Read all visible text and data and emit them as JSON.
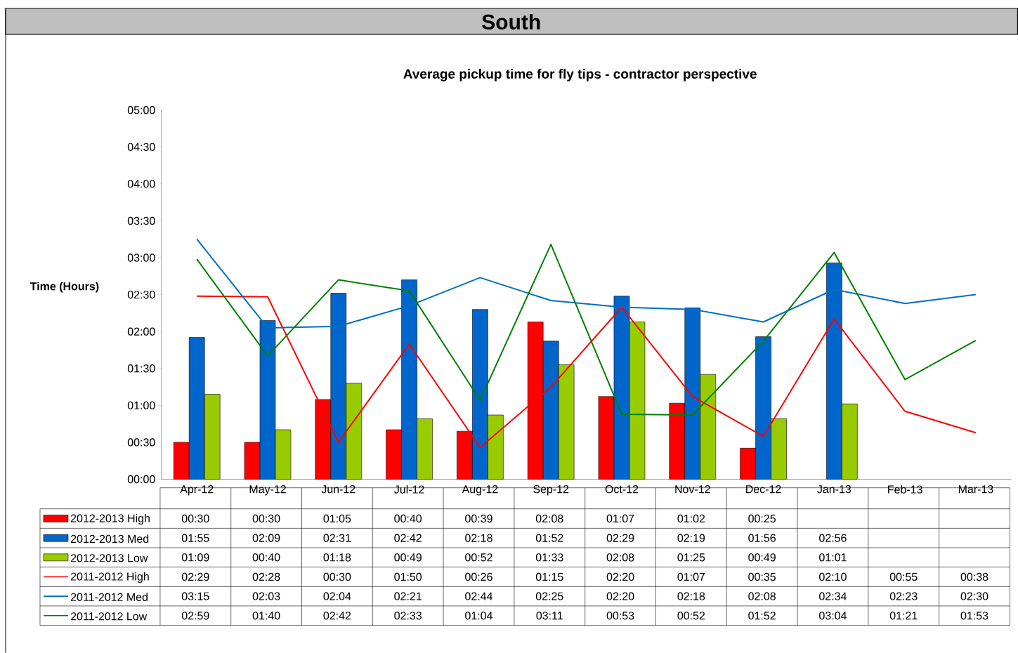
{
  "chart_data": {
    "type": "bar",
    "title": "South",
    "subtitle": "Average pickup time for fly tips - contractor perspective",
    "ylabel": "Time (Hours)",
    "categories": [
      "Apr-12",
      "May-12",
      "Jun-12",
      "Jul-12",
      "Aug-12",
      "Sep-12",
      "Oct-12",
      "Nov-12",
      "Dec-12",
      "Jan-13",
      "Feb-13",
      "Mar-13"
    ],
    "ylim": [
      0,
      5
    ],
    "yticks": [
      {
        "value": 0,
        "label": "00:00"
      },
      {
        "value": 0.5,
        "label": "00:30"
      },
      {
        "value": 1,
        "label": "01:00"
      },
      {
        "value": 1.5,
        "label": "01:30"
      },
      {
        "value": 2,
        "label": "02:00"
      },
      {
        "value": 2.5,
        "label": "02:30"
      },
      {
        "value": 3,
        "label": "03:00"
      },
      {
        "value": 3.5,
        "label": "03:30"
      },
      {
        "value": 4,
        "label": "04:00"
      },
      {
        "value": 4.5,
        "label": "04:30"
      },
      {
        "value": 5,
        "label": "05:00"
      }
    ],
    "legend": "bottom",
    "marker": "none",
    "line_style": "solid",
    "series": [
      {
        "name": "2012-2013 High",
        "type": "bar",
        "color": "#ff0000",
        "values": [
          0.5,
          0.5,
          1.08,
          0.67,
          0.65,
          2.13,
          1.12,
          1.03,
          0.42,
          null,
          null,
          null
        ],
        "value_labels": [
          "00:30",
          "00:30",
          "01:05",
          "00:40",
          "00:39",
          "02:08",
          "01:07",
          "01:02",
          "00:25",
          null,
          null,
          null
        ]
      },
      {
        "name": "2012-2013 Med",
        "type": "bar",
        "color": "#0066cc",
        "values": [
          1.92,
          2.15,
          2.52,
          2.7,
          2.3,
          1.87,
          2.48,
          2.32,
          1.93,
          2.93,
          null,
          null
        ],
        "value_labels": [
          "01:55",
          "02:09",
          "02:31",
          "02:42",
          "02:18",
          "01:52",
          "02:29",
          "02:19",
          "01:56",
          "02:56",
          null,
          null
        ]
      },
      {
        "name": "2012-2013 Low",
        "type": "bar",
        "color": "#99cc00",
        "values": [
          1.15,
          0.67,
          1.3,
          0.82,
          0.87,
          1.55,
          2.13,
          1.42,
          0.82,
          1.02,
          null,
          null
        ],
        "value_labels": [
          "01:09",
          "00:40",
          "01:18",
          "00:49",
          "00:52",
          "01:33",
          "02:08",
          "01:25",
          "00:49",
          "01:01",
          null,
          null
        ]
      },
      {
        "name": "2011-2012 High",
        "type": "line",
        "color": "#ff0000",
        "values": [
          2.48,
          2.47,
          0.5,
          1.83,
          0.43,
          1.25,
          2.33,
          1.12,
          0.58,
          2.17,
          0.92,
          0.63
        ],
        "value_labels": [
          "02:29",
          "02:28",
          "00:30",
          "01:50",
          "00:26",
          "01:15",
          "02:20",
          "01:07",
          "00:35",
          "02:10",
          "00:55",
          "00:38"
        ]
      },
      {
        "name": "2011-2012 Med",
        "type": "line",
        "color": "#0070c0",
        "values": [
          3.25,
          2.05,
          2.07,
          2.35,
          2.73,
          2.42,
          2.33,
          2.3,
          2.13,
          2.57,
          2.38,
          2.5
        ],
        "value_labels": [
          "03:15",
          "02:03",
          "02:04",
          "02:21",
          "02:44",
          "02:25",
          "02:20",
          "02:18",
          "02:08",
          "02:34",
          "02:23",
          "02:30"
        ]
      },
      {
        "name": "2011-2012 Low",
        "type": "line",
        "color": "#008000",
        "values": [
          2.98,
          1.67,
          2.7,
          2.55,
          1.07,
          3.18,
          0.88,
          0.87,
          1.87,
          3.07,
          1.35,
          1.88
        ],
        "value_labels": [
          "02:59",
          "01:40",
          "02:42",
          "02:33",
          "01:04",
          "03:11",
          "00:53",
          "00:52",
          "01:52",
          "03:04",
          "01:21",
          "01:53"
        ]
      }
    ]
  }
}
